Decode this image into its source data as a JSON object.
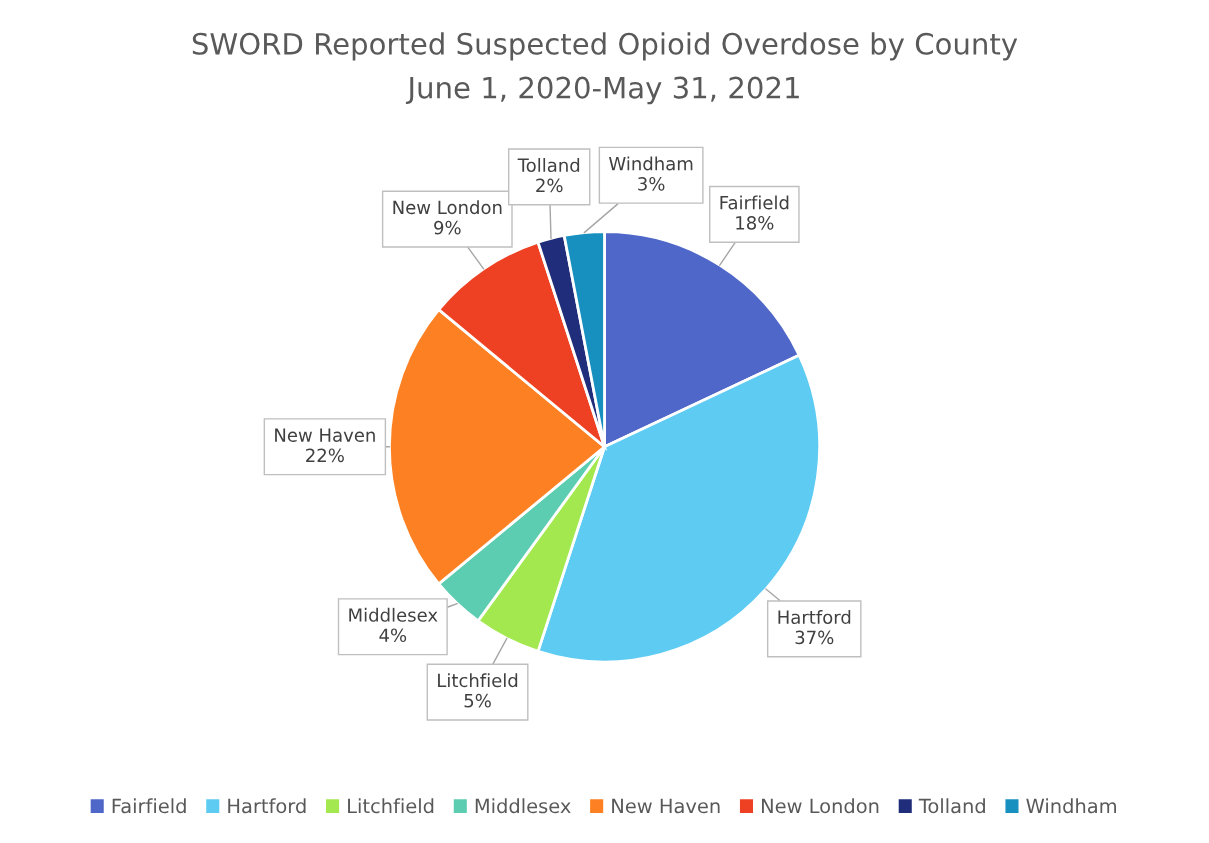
{
  "chart_data": {
    "type": "pie",
    "title": "SWORD Reported Suspected Opioid Overdose by County",
    "subtitle": "June 1, 2020-May 31, 2021",
    "categories": [
      "Fairfield",
      "Hartford",
      "Litchfield",
      "Middlesex",
      "New Haven",
      "New London",
      "Tolland",
      "Windham"
    ],
    "values": [
      18,
      37,
      5,
      4,
      22,
      9,
      2,
      3
    ],
    "colors": [
      "#4f67c8",
      "#5ecbf2",
      "#a4e84f",
      "#5ccdb0",
      "#fd8022",
      "#ee4023",
      "#1f2d7a",
      "#1790c0"
    ],
    "value_labels": [
      "18%",
      "37%",
      "5%",
      "4%",
      "22%",
      "9%",
      "2%",
      "3%"
    ],
    "legend": "bottom"
  }
}
